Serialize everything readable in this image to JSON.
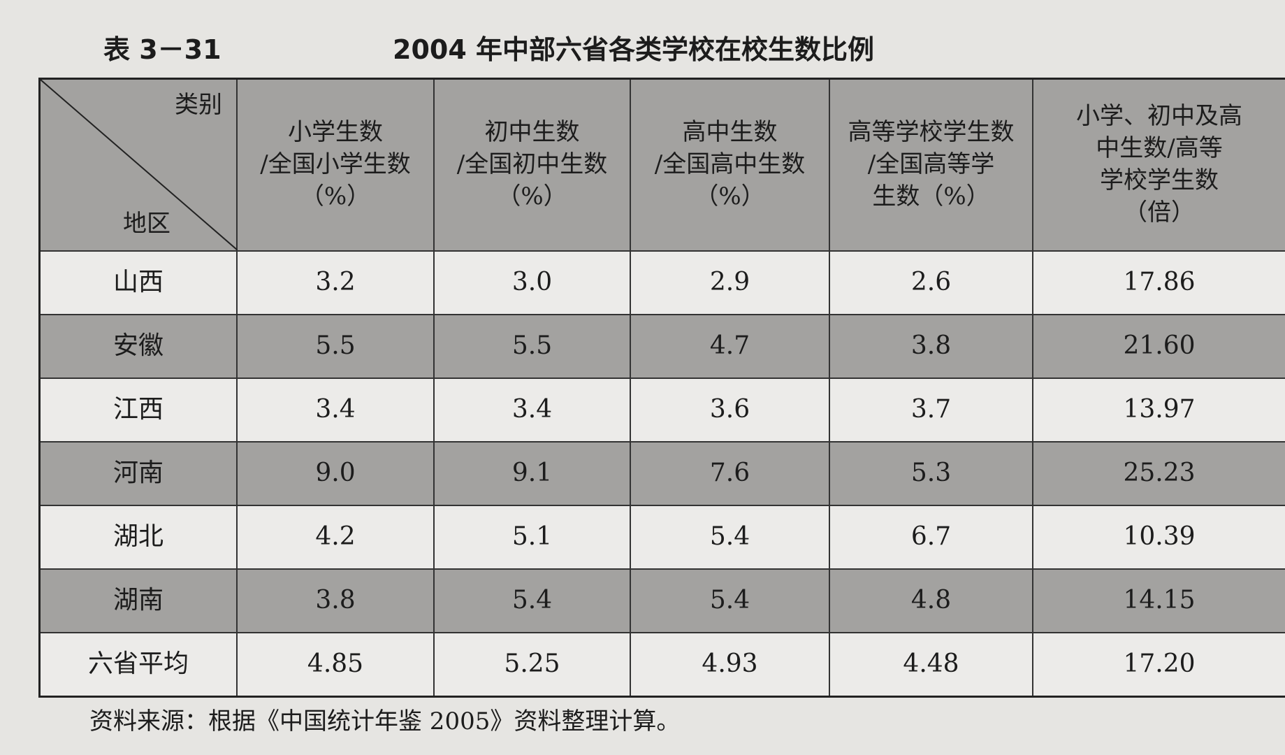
{
  "header": {
    "label": "表 3－31",
    "title": "2004 年中部六省各类学校在校生数比例"
  },
  "table": {
    "corner": {
      "top": "类别",
      "bottom": "地区"
    },
    "columns": [
      [
        "小学生数",
        "/全国小学生数",
        "（%）"
      ],
      [
        "初中生数",
        "/全国初中生数",
        "（%）"
      ],
      [
        "高中生数",
        "/全国高中生数",
        "（%）"
      ],
      [
        "高等学校学生数",
        "/全国高等学",
        "生数（%）"
      ],
      [
        "小学、初中及高",
        "中生数/高等",
        "学校学生数",
        "（倍）"
      ]
    ],
    "rows": [
      [
        "山西",
        "3.2",
        "3.0",
        "2.9",
        "2.6",
        "17.86"
      ],
      [
        "安徽",
        "5.5",
        "5.5",
        "4.7",
        "3.8",
        "21.60"
      ],
      [
        "江西",
        "3.4",
        "3.4",
        "3.6",
        "3.7",
        "13.97"
      ],
      [
        "河南",
        "9.0",
        "9.1",
        "7.6",
        "5.3",
        "25.23"
      ],
      [
        "湖北",
        "4.2",
        "5.1",
        "5.4",
        "6.7",
        "10.39"
      ],
      [
        "湖南",
        "3.8",
        "5.4",
        "5.4",
        "4.8",
        "14.15"
      ],
      [
        "六省平均",
        "4.85",
        "5.25",
        "4.93",
        "4.48",
        "17.20"
      ]
    ]
  },
  "source": "资料来源：根据《中国统计年鉴 2005》资料整理计算。"
}
